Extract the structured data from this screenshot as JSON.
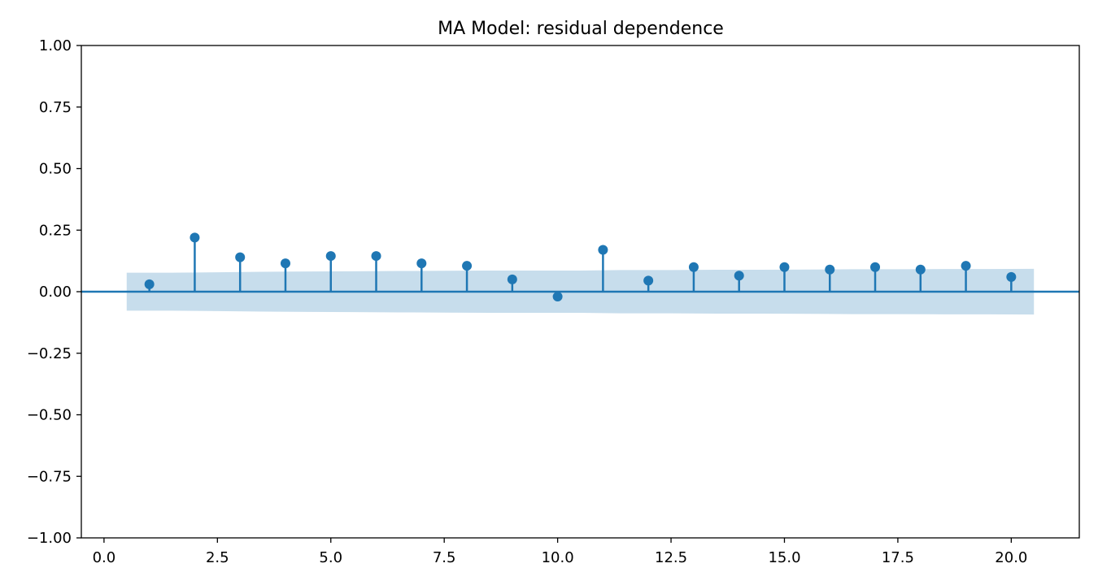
{
  "chart_data": {
    "type": "stem",
    "title": "MA Model: residual dependence",
    "xlabel": "",
    "ylabel": "",
    "xlim": [
      -0.5,
      21.5
    ],
    "ylim": [
      -1.0,
      1.0
    ],
    "x_ticks": [
      0.0,
      2.5,
      5.0,
      7.5,
      10.0,
      12.5,
      15.0,
      17.5,
      20.0
    ],
    "x_tick_labels": [
      "0.0",
      "2.5",
      "5.0",
      "7.5",
      "10.0",
      "12.5",
      "15.0",
      "17.5",
      "20.0"
    ],
    "y_ticks": [
      1.0,
      0.75,
      0.5,
      0.25,
      0.0,
      -0.25,
      -0.5,
      -0.75,
      -1.0
    ],
    "y_tick_labels": [
      "1.00",
      "0.75",
      "0.50",
      "0.25",
      "0.00",
      "−0.25",
      "−0.50",
      "−0.75",
      "−1.00"
    ],
    "lags": [
      1,
      2,
      3,
      4,
      5,
      6,
      7,
      8,
      9,
      10,
      11,
      12,
      13,
      14,
      15,
      16,
      17,
      18,
      19,
      20
    ],
    "values": [
      0.03,
      0.22,
      0.14,
      0.115,
      0.145,
      0.145,
      0.115,
      0.105,
      0.05,
      -0.02,
      0.17,
      0.045,
      0.1,
      0.065,
      0.1,
      0.09,
      0.1,
      0.09,
      0.105,
      0.06
    ],
    "confidence_band": {
      "x": [
        0.5,
        1.5,
        2.5,
        3.5,
        4.5,
        5.5,
        6.5,
        7.5,
        8.5,
        9.5,
        10.5,
        11.5,
        12.5,
        13.5,
        14.5,
        15.5,
        16.5,
        17.5,
        18.5,
        19.5,
        20.5
      ],
      "upper": [
        0.077,
        0.077,
        0.079,
        0.081,
        0.082,
        0.083,
        0.084,
        0.085,
        0.086,
        0.086,
        0.086,
        0.088,
        0.088,
        0.089,
        0.089,
        0.09,
        0.091,
        0.091,
        0.092,
        0.092,
        0.093
      ]
    },
    "grid": false,
    "colors": {
      "stem": "#1f77b4",
      "band": "#1f77b4",
      "band_opacity": 0.25,
      "zero_line": "#1f77b4",
      "axes": "#000000"
    }
  }
}
